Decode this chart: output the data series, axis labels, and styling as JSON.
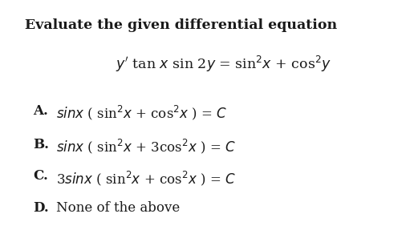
{
  "title": "Evaluate the given differential equation",
  "equation": "$y^{\\prime}$ tan $x$ sin 2$y$ = sin$^2x$ + cos$^2y$",
  "options": [
    [
      "A.",
      "$sinx$ ( sin$^2x$ + cos$^2x$ ) = $C$"
    ],
    [
      "B.",
      "$sinx$ ( sin$^2x$ + 3cos$^2x$ ) = $C$"
    ],
    [
      "C.",
      "3$sinx$ ( sin$^2x$ + cos$^2x$ ) = $C$"
    ],
    [
      "D.",
      "None of the above"
    ]
  ],
  "bg_color": "#ffffff",
  "text_color": "#1a1a1a",
  "title_fontsize": 12.5,
  "eq_fontsize": 12.5,
  "option_fontsize": 12.0
}
